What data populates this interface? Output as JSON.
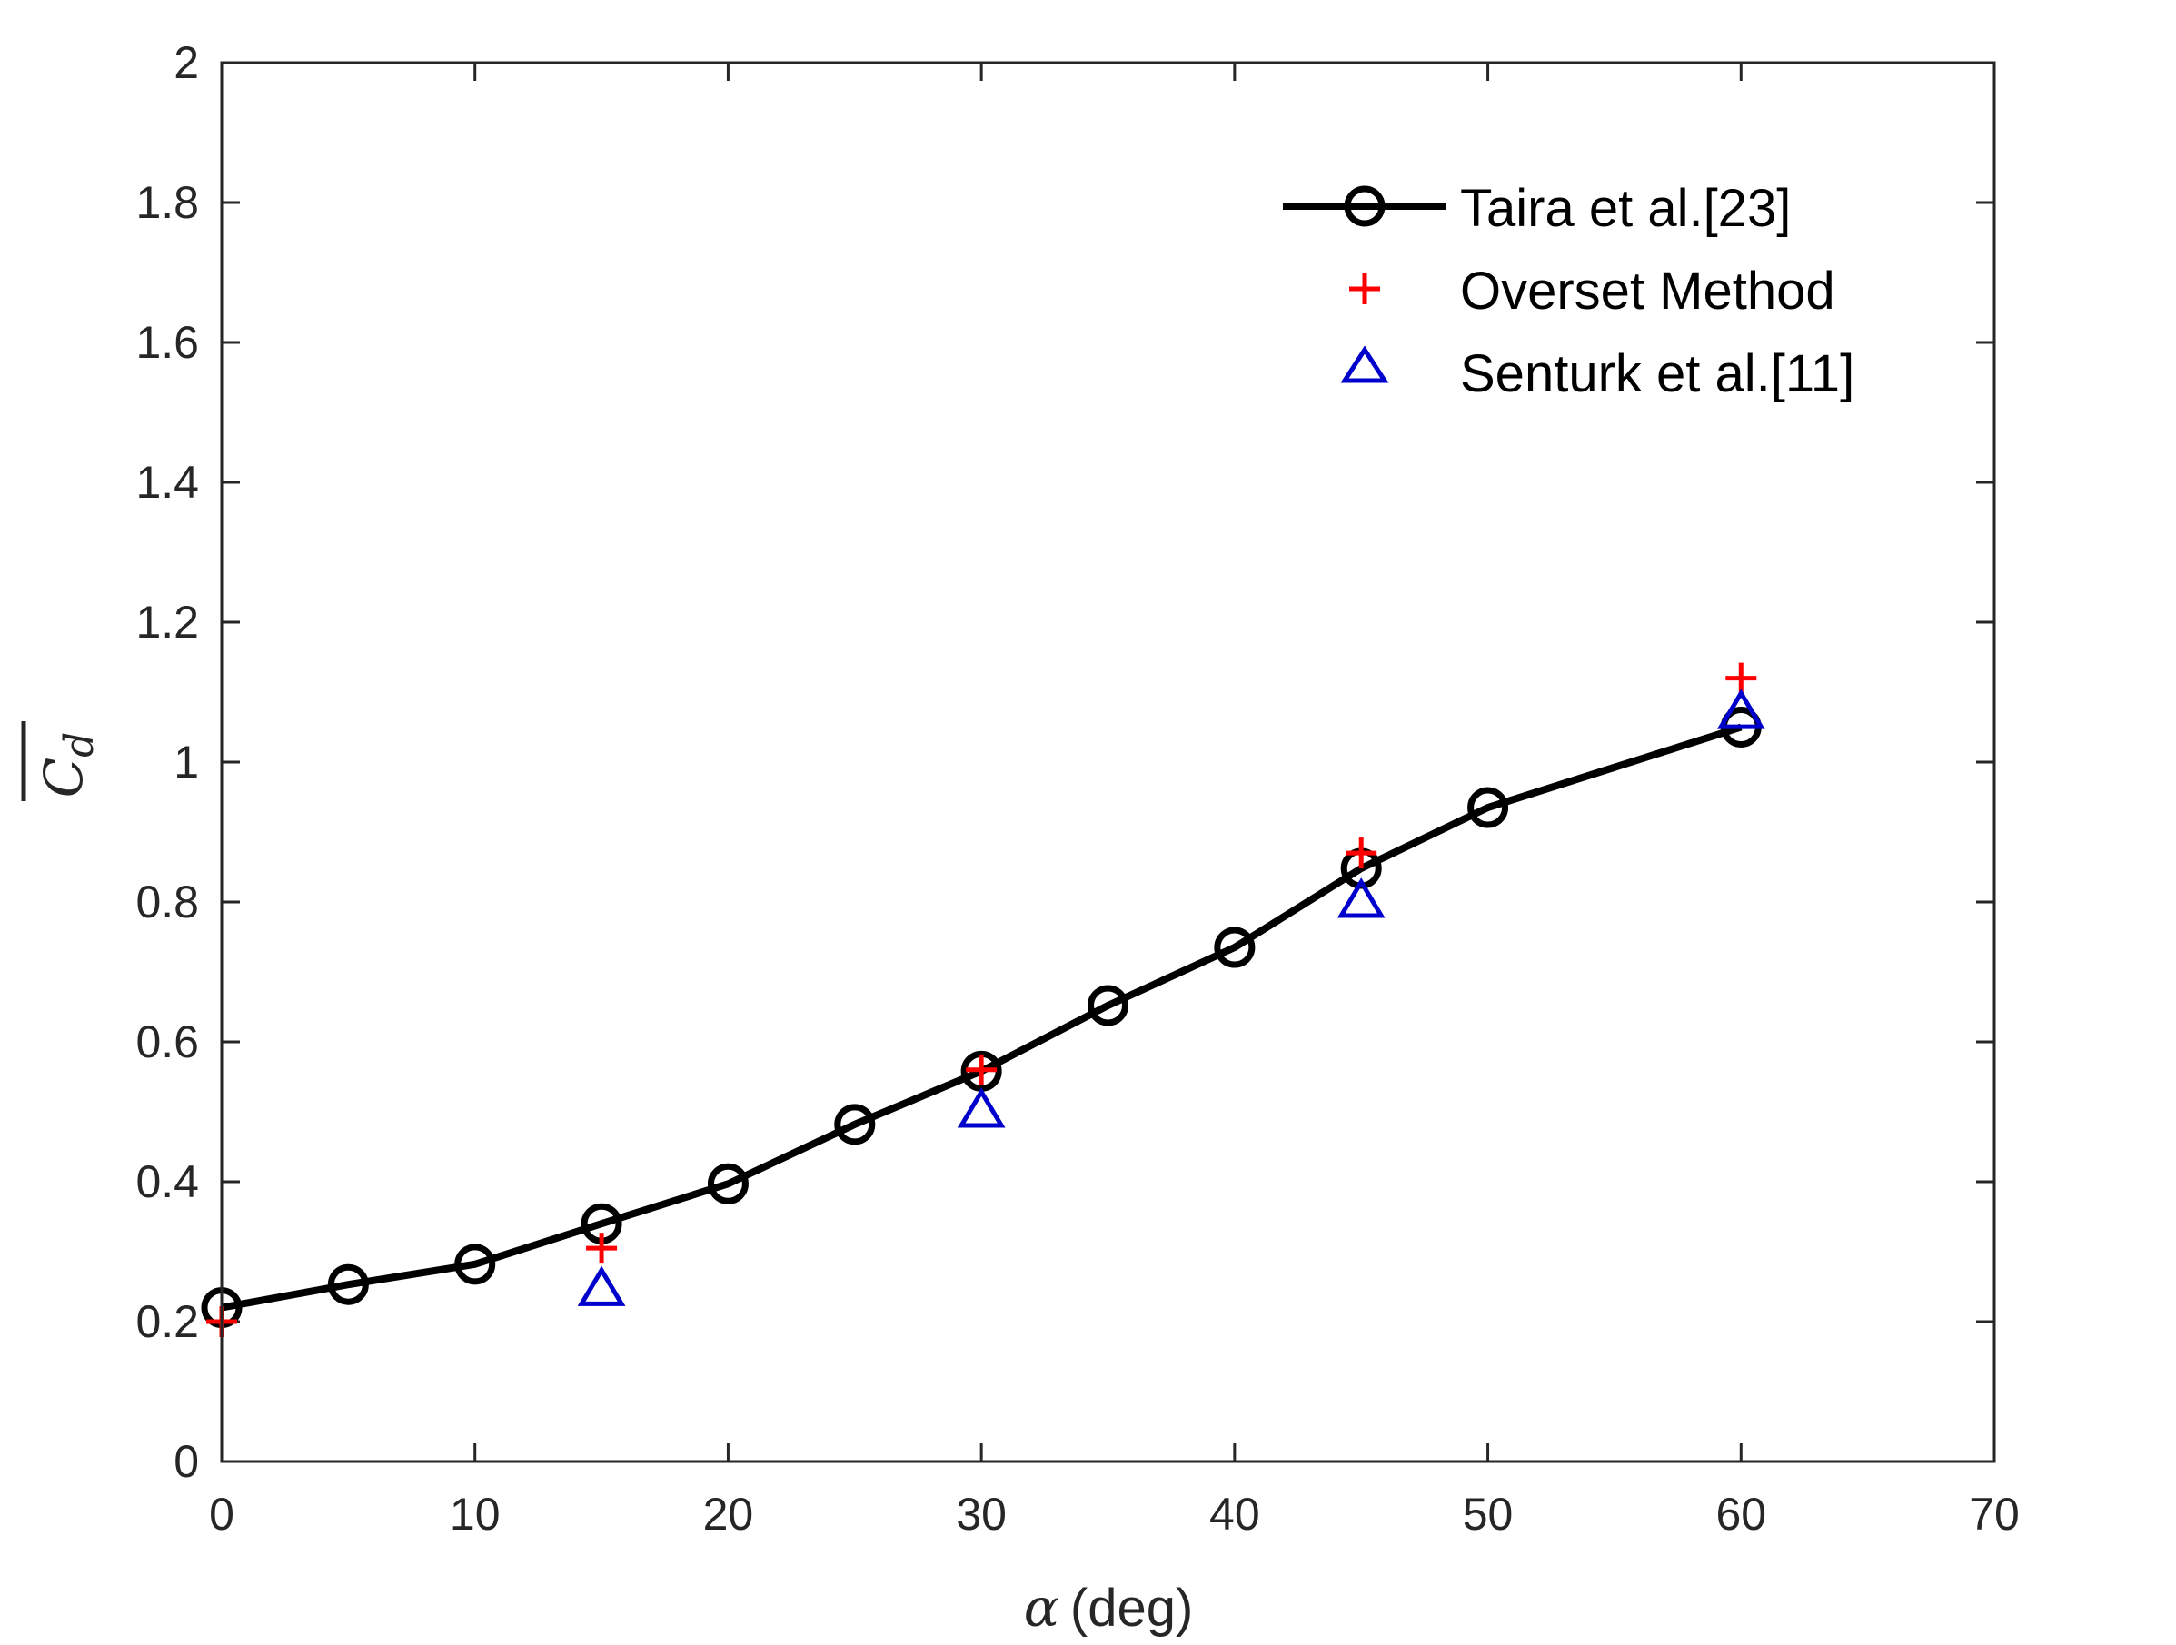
{
  "chart_data": {
    "type": "line",
    "title": "",
    "xlabel": {
      "symbol": "α",
      "unit": "(deg)"
    },
    "ylabel": {
      "symbol": "C",
      "subscript": "d",
      "overline": true
    },
    "xlim": [
      0,
      70
    ],
    "ylim": [
      0,
      2
    ],
    "xticks": [
      0,
      10,
      20,
      30,
      40,
      50,
      60,
      70
    ],
    "yticks": [
      0,
      0.2,
      0.4,
      0.6,
      0.8,
      1,
      1.2,
      1.4,
      1.6,
      1.8,
      2
    ],
    "xtick_labels": [
      "0",
      "10",
      "20",
      "30",
      "40",
      "50",
      "60",
      "70"
    ],
    "ytick_labels": [
      "0",
      "0.2",
      "0.4",
      "0.6",
      "0.8",
      "1",
      "1.2",
      "1.4",
      "1.6",
      "1.8",
      "2"
    ],
    "grid": false,
    "legend_position": "top-right",
    "series": [
      {
        "name": "Taira et al.[23]",
        "style": "line-circle",
        "color": "#000000",
        "x": [
          0,
          5,
          10,
          15,
          20,
          25,
          30,
          35,
          40,
          45,
          50,
          60
        ],
        "y": [
          0.22,
          0.253,
          0.282,
          0.34,
          0.397,
          0.482,
          0.558,
          0.652,
          0.735,
          0.848,
          0.935,
          1.05
        ]
      },
      {
        "name": "Overset Method",
        "style": "plus",
        "color": "#ff0000",
        "x": [
          0,
          15,
          30,
          45,
          60
        ],
        "y": [
          0.2,
          0.305,
          0.56,
          0.87,
          1.12
        ]
      },
      {
        "name": "Senturk et al.[11]",
        "style": "triangle",
        "color": "#0000cc",
        "x": [
          15,
          30,
          45,
          60
        ],
        "y": [
          0.245,
          0.5,
          0.8,
          1.07
        ]
      }
    ]
  }
}
